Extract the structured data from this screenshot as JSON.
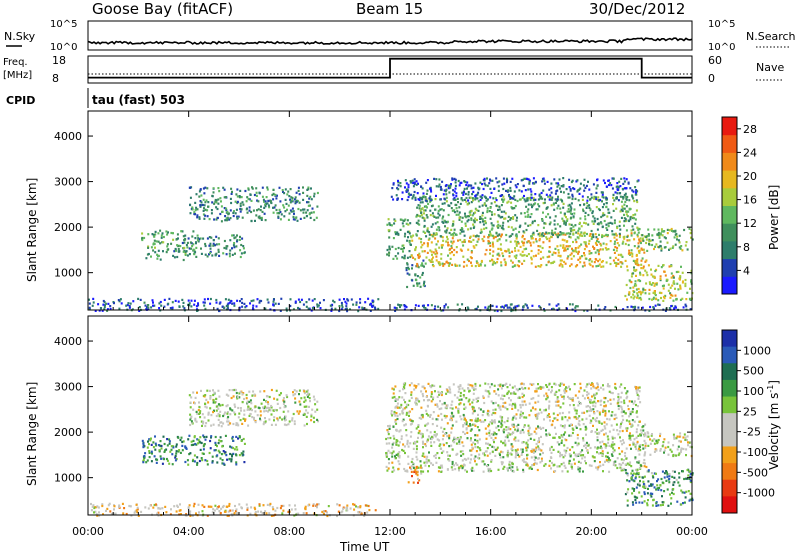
{
  "header": {
    "station": "Goose Bay (fitACF)",
    "beam": "Beam 15",
    "date": "30/Dec/2012"
  },
  "nsky_panel": {
    "left_label": "N.Sky",
    "right_label": "N.Search",
    "left_ticks": [
      "10^5",
      "10^0"
    ],
    "right_ticks": [
      "10^5",
      "10^0"
    ]
  },
  "freq_panel": {
    "left_label_line1": "Freq.",
    "left_label_line2": "[MHz]",
    "right_label": "Nave",
    "left_ticks": [
      "18",
      "8"
    ],
    "right_ticks": [
      "60",
      "0"
    ]
  },
  "cpid": {
    "label": "CPID",
    "value": "tau (fast) 503"
  },
  "colors": {
    "power": [
      "#1a1aff",
      "#1f3fb0",
      "#2e7d6b",
      "#3f8f5c",
      "#5fb85f",
      "#a8cc3c",
      "#e6b820",
      "#f08a1a",
      "#f05a14",
      "#e81a10"
    ],
    "velocity": [
      "#1c2fa8",
      "#2a5ab8",
      "#1e6e52",
      "#3a9a42",
      "#78c43a",
      "#c6c6c0",
      "#c6c6c0",
      "#f2a01a",
      "#f07a14",
      "#e83a12",
      "#e01010"
    ]
  },
  "chart_data": [
    {
      "type": "heatmap",
      "title": "Power",
      "xlabel": "Time UT",
      "ylabel": "Slant Range [km]",
      "colorbar_label": "Power [dB]",
      "x_ticks": [
        "00:00",
        "04:00",
        "08:00",
        "12:00",
        "16:00",
        "20:00",
        "00:00"
      ],
      "y_ticks": [
        1000,
        2000,
        3000,
        4000
      ],
      "xlim": [
        0,
        24
      ],
      "ylim": [
        180,
        4550
      ],
      "colorbar_ticks": [
        4,
        8,
        12,
        16,
        20,
        24,
        28
      ],
      "colorbar_range": [
        0,
        30
      ],
      "regions": [
        {
          "t0": 2.1,
          "t1": 4.2,
          "r0": 1300,
          "r1": 1950,
          "level": 0.35
        },
        {
          "t0": 4.2,
          "t1": 6.2,
          "r0": 1350,
          "r1": 1850,
          "level": 0.32
        },
        {
          "t0": 4.0,
          "t1": 9.1,
          "r0": 2150,
          "r1": 2900,
          "level": 0.3
        },
        {
          "t0": 11.8,
          "t1": 12.8,
          "r0": 1300,
          "r1": 2200,
          "level": 0.38
        },
        {
          "t0": 12.6,
          "t1": 13.4,
          "r0": 700,
          "r1": 1300,
          "level": 0.3
        },
        {
          "t0": 12.8,
          "t1": 22.2,
          "r0": 1150,
          "r1": 1900,
          "level": 0.62
        },
        {
          "t0": 13.0,
          "t1": 21.8,
          "r0": 1800,
          "r1": 2700,
          "level": 0.38
        },
        {
          "t0": 12.0,
          "t1": 21.9,
          "r0": 2600,
          "r1": 3100,
          "level": 0.18
        },
        {
          "t0": 21.8,
          "t1": 24.0,
          "r0": 1500,
          "r1": 2000,
          "level": 0.45
        },
        {
          "t0": 21.3,
          "t1": 24.0,
          "r0": 400,
          "r1": 1200,
          "level": 0.55
        },
        {
          "t0": 0.0,
          "t1": 11.5,
          "r0": 180,
          "r1": 450,
          "level": 0.15
        },
        {
          "t0": 12.0,
          "t1": 24.0,
          "r0": 180,
          "r1": 330,
          "level": 0.2
        }
      ]
    },
    {
      "type": "heatmap",
      "title": "Velocity",
      "xlabel": "Time UT",
      "ylabel": "Slant Range [km]",
      "colorbar_label": "Velocity [m s^-1]",
      "x_ticks": [
        "00:00",
        "04:00",
        "08:00",
        "12:00",
        "16:00",
        "20:00",
        "00:00"
      ],
      "y_ticks": [
        1000,
        2000,
        3000,
        4000
      ],
      "xlim": [
        0,
        24
      ],
      "ylim": [
        180,
        4550
      ],
      "colorbar_ticks": [
        "1000",
        "500",
        "100",
        "25",
        "-25",
        "-100",
        "-500",
        "-1000"
      ],
      "regions": [
        {
          "t0": 2.1,
          "t1": 6.2,
          "r0": 1300,
          "r1": 1950,
          "level": 0.25
        },
        {
          "t0": 4.0,
          "t1": 9.1,
          "r0": 2150,
          "r1": 2950,
          "level": 0.5
        },
        {
          "t0": 11.8,
          "t1": 22.2,
          "r0": 1150,
          "r1": 2200,
          "level": 0.5
        },
        {
          "t0": 12.0,
          "t1": 21.9,
          "r0": 2200,
          "r1": 3100,
          "level": 0.52
        },
        {
          "t0": 12.6,
          "t1": 13.2,
          "r0": 900,
          "r1": 1300,
          "level": 0.72
        },
        {
          "t0": 21.8,
          "t1": 24.0,
          "r0": 1500,
          "r1": 2000,
          "level": 0.5
        },
        {
          "t0": 21.3,
          "t1": 24.0,
          "r0": 400,
          "r1": 1200,
          "level": 0.3
        },
        {
          "t0": 0.0,
          "t1": 11.5,
          "r0": 180,
          "r1": 450,
          "level": 0.6
        }
      ]
    },
    {
      "type": "line",
      "title": "Frequency / Nave",
      "x": [
        0,
        12,
        12,
        22,
        22,
        24
      ],
      "y": [
        10,
        10,
        17,
        17,
        10,
        10
      ],
      "ylim": [
        8,
        18
      ],
      "xlim": [
        0,
        24
      ]
    }
  ]
}
